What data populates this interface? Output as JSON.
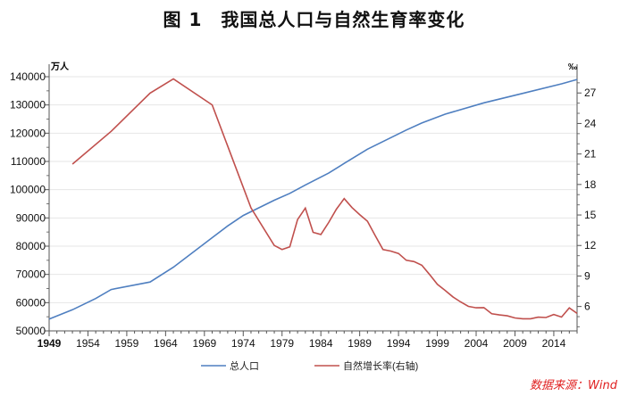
{
  "title": "图 1　我国总人口与自然生育率变化",
  "source": "数据来源：Wind",
  "chart_data": {
    "type": "line",
    "title": "图 1　我国总人口与自然生育率变化",
    "left_axis": {
      "label": "万人",
      "range": [
        50000,
        140000
      ],
      "ticks": [
        50000,
        60000,
        70000,
        80000,
        90000,
        100000,
        110000,
        120000,
        130000,
        140000
      ]
    },
    "right_axis": {
      "label": "‰",
      "range": [
        3.6,
        28.6
      ],
      "ticks": [
        6,
        9,
        12,
        15,
        18,
        21,
        24,
        27
      ]
    },
    "x_axis": {
      "range": [
        1949,
        2017
      ],
      "ticks": [
        1949,
        1954,
        1959,
        1964,
        1969,
        1974,
        1979,
        1984,
        1989,
        1994,
        1999,
        2004,
        2009,
        2014
      ]
    },
    "grid": true,
    "legend_placement": "bottom",
    "series": [
      {
        "name": "总人口",
        "axis": "left",
        "color": "#4f7fc0",
        "x": [
          1949,
          1952,
          1955,
          1957,
          1962,
          1965,
          1970,
          1972,
          1974,
          1978,
          1980,
          1982,
          1985,
          1987,
          1990,
          1995,
          1997,
          2000,
          2005,
          2010,
          2015,
          2017
        ],
        "y": [
          54167,
          57482,
          61465,
          64653,
          67295,
          72538,
          82992,
          87177,
          90859,
          96259,
          98705,
          101654,
          105851,
          109300,
          114333,
          121121,
          123626,
          126743,
          130756,
          134091,
          137462,
          139008
        ]
      },
      {
        "name": "自然增长率(右轴)",
        "axis": "right",
        "color": "#c0504d",
        "x": [
          1952,
          1957,
          1962,
          1965,
          1970,
          1975,
          1978,
          1979,
          1980,
          1981,
          1982,
          1983,
          1984,
          1985,
          1986,
          1987,
          1988,
          1989,
          1990,
          1991,
          1992,
          1993,
          1994,
          1995,
          1996,
          1997,
          1998,
          1999,
          2000,
          2001,
          2002,
          2003,
          2004,
          2005,
          2006,
          2007,
          2008,
          2009,
          2010,
          2011,
          2012,
          2013,
          2014,
          2015,
          2016,
          2017
        ],
        "y": [
          20.0,
          23.23,
          26.99,
          28.38,
          25.83,
          15.69,
          12.0,
          11.61,
          11.87,
          14.55,
          15.68,
          13.29,
          13.08,
          14.26,
          15.57,
          16.61,
          15.73,
          15.04,
          14.39,
          12.98,
          11.6,
          11.45,
          11.21,
          10.55,
          10.42,
          10.06,
          9.14,
          8.18,
          7.58,
          6.95,
          6.45,
          6.01,
          5.87,
          5.89,
          5.28,
          5.17,
          5.08,
          4.87,
          4.79,
          4.79,
          4.95,
          4.92,
          5.21,
          4.96,
          5.86,
          5.32
        ]
      }
    ]
  }
}
